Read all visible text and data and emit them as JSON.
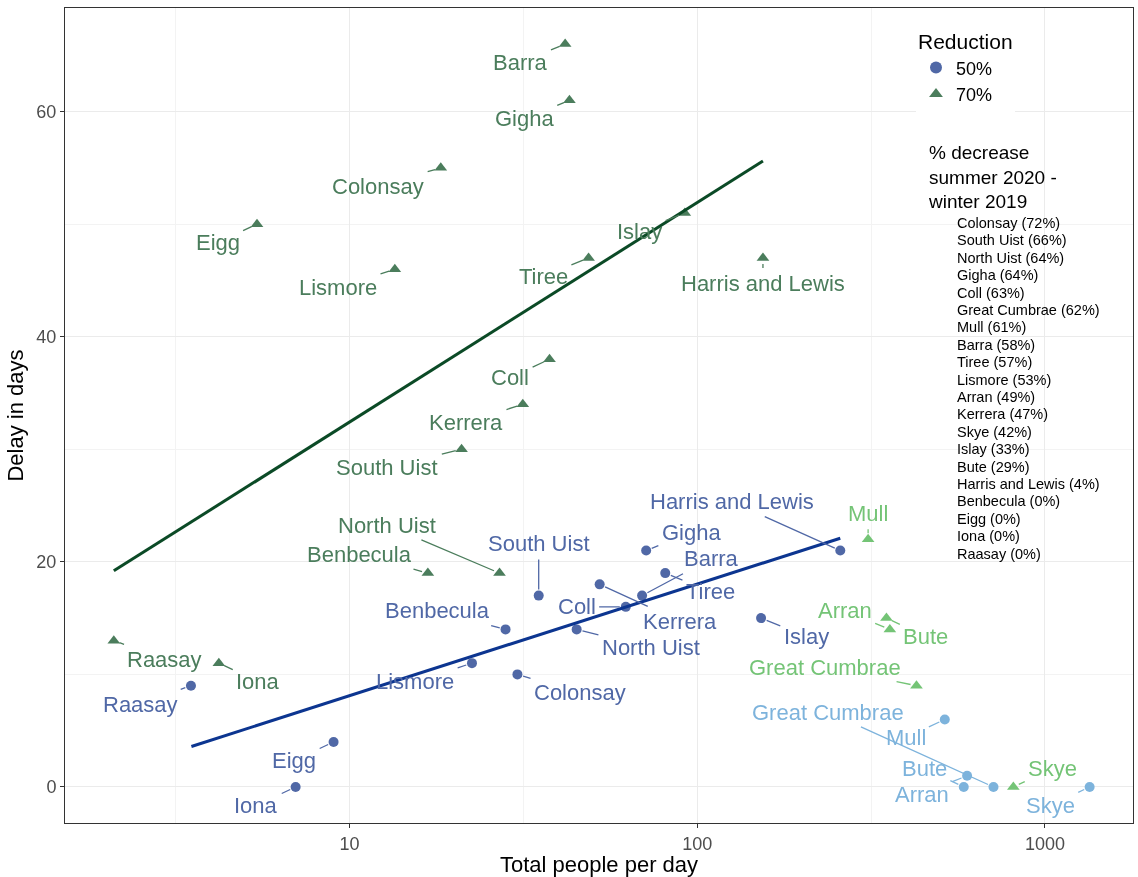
{
  "chart_data": {
    "type": "scatter",
    "xlabel": "Total people per day",
    "ylabel": "Delay in days",
    "legend_title": "Reduction",
    "log": "x",
    "xlim": [
      1.52,
      1791
    ],
    "ylim": [
      -3.2,
      69.2
    ],
    "xticks": [
      10,
      100,
      1000
    ],
    "yticks": [
      0,
      20,
      40,
      60
    ],
    "grid": true,
    "legend": "top right",
    "series": [
      {
        "name": "50%",
        "marker": "circle",
        "x": [
          3.5,
          9.0,
          7.0,
          28.1,
          22.5,
          30.4,
          35.0,
          45.0,
          71.3,
          80.9,
          52.4,
          69.4,
          62.3,
          152.6,
          257.8,
          515,
          597,
          584,
          711,
          1344
        ],
        "values": [
          9,
          4,
          0,
          14,
          11,
          10,
          17,
          14,
          21,
          19,
          18,
          17,
          16,
          15,
          21,
          6,
          1,
          0,
          0,
          0
        ],
        "colors": [
          "#5068a6",
          "#5068a6",
          "#5068a6",
          "#5068a6",
          "#5068a6",
          "#5068a6",
          "#5068a6",
          "#5068a6",
          "#5068a6",
          "#5068a6",
          "#5068a6",
          "#5068a6",
          "#5068a6",
          "#5068a6",
          "#5068a6",
          "#7db3dc",
          "#7db3dc",
          "#7db3dc",
          "#7db3dc",
          "#7db3dc"
        ]
      },
      {
        "name": "70%",
        "marker": "triangle",
        "x": [
          41.7,
          42.9,
          18.3,
          5.42,
          13.5,
          37.6,
          31.5,
          21.0,
          16.8,
          27.0,
          2.1,
          4.21,
          92.1,
          48.7,
          154.5,
          310,
          350,
          358,
          427,
          811
        ],
        "values": [
          66,
          61,
          55,
          50,
          46,
          38,
          34,
          30,
          19,
          19,
          13,
          11,
          51,
          47,
          47,
          22,
          15,
          14,
          9,
          0
        ],
        "colors": [
          "#4b7d5c",
          "#4b7d5c",
          "#4b7d5c",
          "#4b7d5c",
          "#4b7d5c",
          "#4b7d5c",
          "#4b7d5c",
          "#4b7d5c",
          "#4b7d5c",
          "#4b7d5c",
          "#4b7d5c",
          "#4b7d5c",
          "#4b7d5c",
          "#4b7d5c",
          "#4b7d5c",
          "#74c476",
          "#74c476",
          "#74c476",
          "#74c476",
          "#74c476"
        ]
      },
      {
        "type": "line",
        "color": "#0b4a26",
        "marker": "none",
        "x": [
          2.1,
          154.5
        ],
        "values": [
          19.2,
          55.6
        ]
      },
      {
        "type": "line",
        "color": "#0c3590",
        "marker": "none",
        "x": [
          3.51,
          257.8
        ],
        "values": [
          3.6,
          22.1
        ]
      }
    ],
    "annotations": [
      {
        "text": "Raasay",
        "x": 3.5,
        "y": 9
      },
      {
        "text": "Eigg",
        "x": 9.0,
        "y": 4
      },
      {
        "text": "Iona",
        "x": 7.0,
        "y": 0
      },
      {
        "text": "Benbecula",
        "x": 28.1,
        "y": 14
      },
      {
        "text": "Lismore",
        "x": 22.5,
        "y": 11
      },
      {
        "text": "Colonsay",
        "x": 30.4,
        "y": 10
      },
      {
        "text": "South Uist",
        "x": 35.0,
        "y": 17
      },
      {
        "text": "North Uist",
        "x": 45.0,
        "y": 14
      },
      {
        "text": "Gigha",
        "x": 71.3,
        "y": 21
      },
      {
        "text": "Tiree",
        "x": 80.9,
        "y": 19
      },
      {
        "text": "Kerrera",
        "x": 52.4,
        "y": 18
      },
      {
        "text": "Barra",
        "x": 69.4,
        "y": 17
      },
      {
        "text": "Coll",
        "x": 62.3,
        "y": 16
      },
      {
        "text": "Islay",
        "x": 152.6,
        "y": 15
      },
      {
        "text": "Harris and Lewis",
        "x": 257.8,
        "y": 21
      },
      {
        "text": "Mull",
        "x": 515,
        "y": 6
      },
      {
        "text": "Arran",
        "x": 597,
        "y": 1
      },
      {
        "text": "Bute",
        "x": 584,
        "y": 0
      },
      {
        "text": "Great Cumbrae",
        "x": 711,
        "y": 0
      },
      {
        "text": "Skye",
        "x": 1344,
        "y": 0
      },
      {
        "text": "Barra",
        "x": 41.7,
        "y": 66
      },
      {
        "text": "Gigha",
        "x": 42.9,
        "y": 61
      },
      {
        "text": "Colonsay",
        "x": 18.3,
        "y": 55
      },
      {
        "text": "Eigg",
        "x": 5.42,
        "y": 50
      },
      {
        "text": "Lismore",
        "x": 13.5,
        "y": 46
      },
      {
        "text": "Coll",
        "x": 37.6,
        "y": 38
      },
      {
        "text": "Kerrera",
        "x": 31.5,
        "y": 34
      },
      {
        "text": "South Uist",
        "x": 21.0,
        "y": 30
      },
      {
        "text": "Benbecula",
        "x": 16.8,
        "y": 19
      },
      {
        "text": "North Uist",
        "x": 27.0,
        "y": 19
      },
      {
        "text": "Raasay",
        "x": 2.1,
        "y": 13
      },
      {
        "text": "Iona",
        "x": 4.21,
        "y": 11
      },
      {
        "text": "Islay",
        "x": 92.1,
        "y": 51
      },
      {
        "text": "Tiree",
        "x": 48.7,
        "y": 47
      },
      {
        "text": "Harris and Lewis",
        "x": 154.5,
        "y": 47
      },
      {
        "text": "Mull",
        "x": 310,
        "y": 22
      },
      {
        "text": "Bute",
        "x": 350,
        "y": 15
      },
      {
        "text": "Arran",
        "x": 358,
        "y": 14
      },
      {
        "text": "Great Cumbrae",
        "x": 427,
        "y": 9
      },
      {
        "text": "Skye",
        "x": 811,
        "y": 0
      },
      "% decrease summer 2020 - winter 2019",
      "Colonsay (72%)",
      "South Uist (66%)",
      "North Uist (64%)",
      "Gigha (64%)",
      "Coll (63%)",
      "Great Cumbrae (62%)",
      "Mull (61%)",
      "Barra (58%)",
      "Tiree (57%)",
      "Lismore (53%)",
      "Arran (49%)",
      "Kerrera (47%)",
      "Skye (42%)",
      "Islay (33%)",
      "Bute (29%)",
      "Harris and Lewis (4%)",
      "Benbecula (0%)",
      "Eigg (0%)",
      "Iona (0%)",
      "Raasay (0%)"
    ]
  }
}
